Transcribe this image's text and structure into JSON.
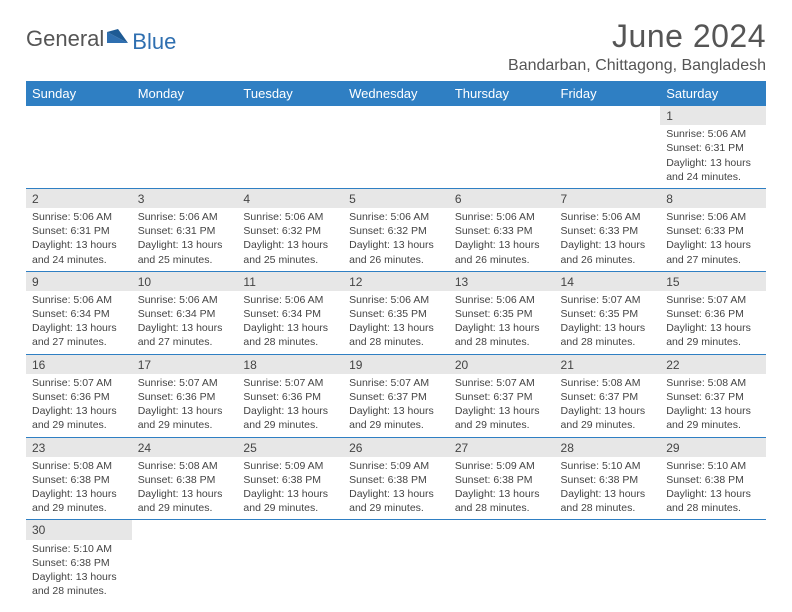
{
  "logo": {
    "word1": "General",
    "word2": "Blue"
  },
  "title": "June 2024",
  "location": "Bandarban, Chittagong, Bangladesh",
  "colors": {
    "header_bg": "#2f7fc3",
    "header_fg": "#ffffff",
    "daynum_bg": "#e7e7e7",
    "divider": "#2f7fc3",
    "logo_accent": "#2f6fb0",
    "text": "#444444"
  },
  "typography": {
    "title_fontsize": 32,
    "location_fontsize": 16,
    "weekday_fontsize": 13,
    "body_fontsize": 10.5
  },
  "weekdays": [
    "Sunday",
    "Monday",
    "Tuesday",
    "Wednesday",
    "Thursday",
    "Friday",
    "Saturday"
  ],
  "labels": {
    "sunrise": "Sunrise:",
    "sunset": "Sunset:",
    "daylight": "Daylight:"
  },
  "weeks": [
    [
      null,
      null,
      null,
      null,
      null,
      null,
      {
        "n": "1",
        "rise": "5:06 AM",
        "set": "6:31 PM",
        "dl": "13 hours and 24 minutes."
      }
    ],
    [
      {
        "n": "2",
        "rise": "5:06 AM",
        "set": "6:31 PM",
        "dl": "13 hours and 24 minutes."
      },
      {
        "n": "3",
        "rise": "5:06 AM",
        "set": "6:31 PM",
        "dl": "13 hours and 25 minutes."
      },
      {
        "n": "4",
        "rise": "5:06 AM",
        "set": "6:32 PM",
        "dl": "13 hours and 25 minutes."
      },
      {
        "n": "5",
        "rise": "5:06 AM",
        "set": "6:32 PM",
        "dl": "13 hours and 26 minutes."
      },
      {
        "n": "6",
        "rise": "5:06 AM",
        "set": "6:33 PM",
        "dl": "13 hours and 26 minutes."
      },
      {
        "n": "7",
        "rise": "5:06 AM",
        "set": "6:33 PM",
        "dl": "13 hours and 26 minutes."
      },
      {
        "n": "8",
        "rise": "5:06 AM",
        "set": "6:33 PM",
        "dl": "13 hours and 27 minutes."
      }
    ],
    [
      {
        "n": "9",
        "rise": "5:06 AM",
        "set": "6:34 PM",
        "dl": "13 hours and 27 minutes."
      },
      {
        "n": "10",
        "rise": "5:06 AM",
        "set": "6:34 PM",
        "dl": "13 hours and 27 minutes."
      },
      {
        "n": "11",
        "rise": "5:06 AM",
        "set": "6:34 PM",
        "dl": "13 hours and 28 minutes."
      },
      {
        "n": "12",
        "rise": "5:06 AM",
        "set": "6:35 PM",
        "dl": "13 hours and 28 minutes."
      },
      {
        "n": "13",
        "rise": "5:06 AM",
        "set": "6:35 PM",
        "dl": "13 hours and 28 minutes."
      },
      {
        "n": "14",
        "rise": "5:07 AM",
        "set": "6:35 PM",
        "dl": "13 hours and 28 minutes."
      },
      {
        "n": "15",
        "rise": "5:07 AM",
        "set": "6:36 PM",
        "dl": "13 hours and 29 minutes."
      }
    ],
    [
      {
        "n": "16",
        "rise": "5:07 AM",
        "set": "6:36 PM",
        "dl": "13 hours and 29 minutes."
      },
      {
        "n": "17",
        "rise": "5:07 AM",
        "set": "6:36 PM",
        "dl": "13 hours and 29 minutes."
      },
      {
        "n": "18",
        "rise": "5:07 AM",
        "set": "6:36 PM",
        "dl": "13 hours and 29 minutes."
      },
      {
        "n": "19",
        "rise": "5:07 AM",
        "set": "6:37 PM",
        "dl": "13 hours and 29 minutes."
      },
      {
        "n": "20",
        "rise": "5:07 AM",
        "set": "6:37 PM",
        "dl": "13 hours and 29 minutes."
      },
      {
        "n": "21",
        "rise": "5:08 AM",
        "set": "6:37 PM",
        "dl": "13 hours and 29 minutes."
      },
      {
        "n": "22",
        "rise": "5:08 AM",
        "set": "6:37 PM",
        "dl": "13 hours and 29 minutes."
      }
    ],
    [
      {
        "n": "23",
        "rise": "5:08 AM",
        "set": "6:38 PM",
        "dl": "13 hours and 29 minutes."
      },
      {
        "n": "24",
        "rise": "5:08 AM",
        "set": "6:38 PM",
        "dl": "13 hours and 29 minutes."
      },
      {
        "n": "25",
        "rise": "5:09 AM",
        "set": "6:38 PM",
        "dl": "13 hours and 29 minutes."
      },
      {
        "n": "26",
        "rise": "5:09 AM",
        "set": "6:38 PM",
        "dl": "13 hours and 29 minutes."
      },
      {
        "n": "27",
        "rise": "5:09 AM",
        "set": "6:38 PM",
        "dl": "13 hours and 28 minutes."
      },
      {
        "n": "28",
        "rise": "5:10 AM",
        "set": "6:38 PM",
        "dl": "13 hours and 28 minutes."
      },
      {
        "n": "29",
        "rise": "5:10 AM",
        "set": "6:38 PM",
        "dl": "13 hours and 28 minutes."
      }
    ],
    [
      {
        "n": "30",
        "rise": "5:10 AM",
        "set": "6:38 PM",
        "dl": "13 hours and 28 minutes."
      },
      null,
      null,
      null,
      null,
      null,
      null
    ]
  ]
}
